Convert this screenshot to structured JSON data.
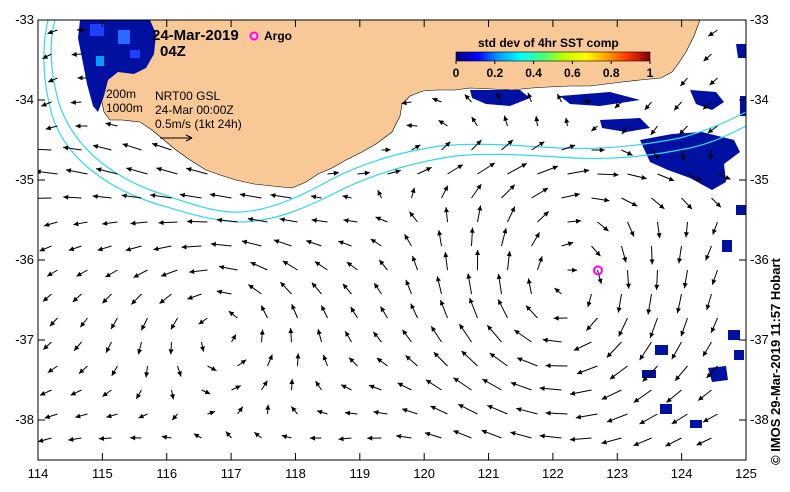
{
  "map": {
    "date": "24-Mar-2019",
    "time": "04Z",
    "argo_label": "Argo",
    "contour_200": "200m",
    "contour_1000": "1000m",
    "product": "NRT00 GSL",
    "product_time": "24-Mar 00:00Z",
    "scale_label": "0.5m/s (1kt 24h)",
    "credit": "©  IMOS 29-Mar-2019 11:57 Hobart"
  },
  "colorbar": {
    "title": "std dev of 4hr SST comp",
    "ticks": [
      "0",
      "0.2",
      "0.4",
      "0.6",
      "0.8",
      "1"
    ],
    "colors": [
      "#000080",
      "#0000ff",
      "#00a0ff",
      "#00ffff",
      "#40ff80",
      "#c0ff00",
      "#ffff00",
      "#ffa000",
      "#ff3000",
      "#800000"
    ]
  },
  "axes": {
    "lon_ticks": [
      "114",
      "115",
      "116",
      "117",
      "118",
      "119",
      "120",
      "121",
      "122",
      "123",
      "124",
      "125"
    ],
    "lat_ticks": [
      "-33",
      "-34",
      "-35",
      "-36",
      "-37",
      "-38"
    ],
    "lon_range": [
      114,
      125
    ],
    "lat_range": [
      -38.5,
      -33
    ]
  },
  "colors": {
    "land": "#f8c896",
    "isobath": "#30d8e8",
    "argo": "#ff00ff",
    "high_variance": "#0010a0"
  },
  "argo_float": {
    "lon": 122.7,
    "lat": -36.13
  }
}
